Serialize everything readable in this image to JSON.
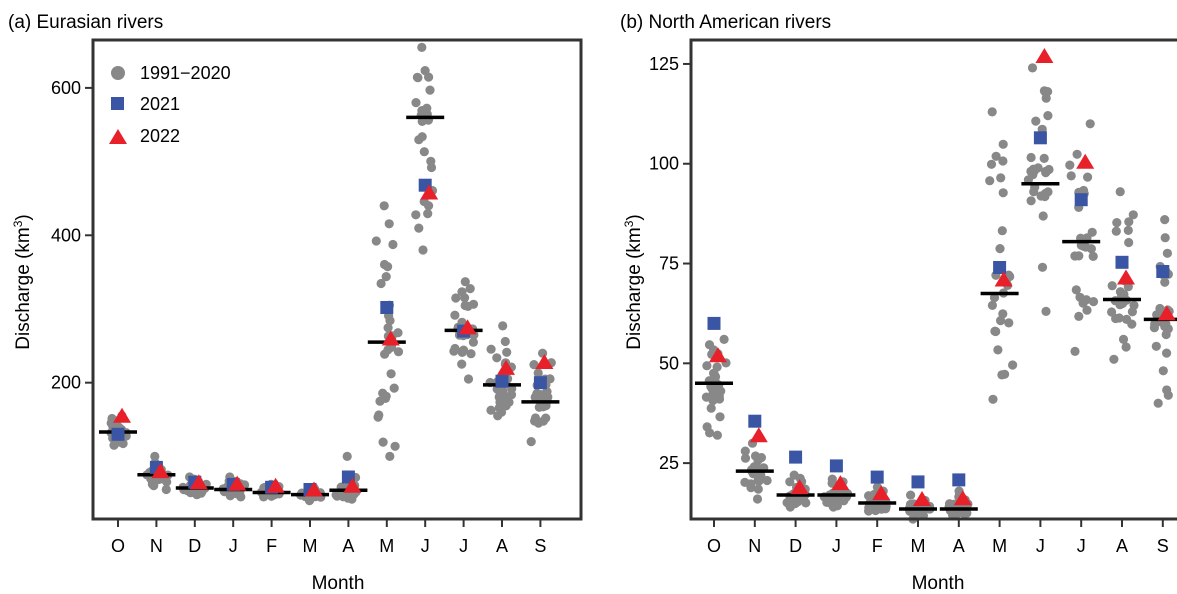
{
  "panels": [
    {
      "title": "(a) Eurasian rivers",
      "xlabel": "Month",
      "ylabel_main": "Discharge (km",
      "ylabel_sup": "3",
      "ylabel_close": ")",
      "legend": [
        "1991−2020",
        "2021",
        "2022"
      ],
      "legend_position": "top-left"
    },
    {
      "title": "(b) North American rivers",
      "xlabel": "Month",
      "ylabel_main": "Discharge (km",
      "ylabel_sup": "3",
      "ylabel_close": ")",
      "legend_position": "none"
    }
  ],
  "colors": {
    "climatology": "#888888",
    "y2021": "#3a55a4",
    "y2022": "#e8202a",
    "median": "#000000"
  },
  "chart_data": [
    {
      "type": "scatter",
      "title": "(a) Eurasian rivers",
      "xlabel": "Month",
      "ylabel": "Discharge (km3)",
      "categories": [
        "O",
        "N",
        "D",
        "J",
        "F",
        "M",
        "A",
        "M",
        "J",
        "J",
        "A",
        "S"
      ],
      "ylim": [
        15,
        665
      ],
      "yticks": [
        200,
        400,
        600
      ],
      "median_1991_2020": [
        133,
        75,
        57,
        55,
        51,
        48,
        54,
        255,
        560,
        271,
        197,
        174
      ],
      "range_1991_2020": [
        [
          115,
          155
        ],
        [
          55,
          100
        ],
        [
          48,
          72
        ],
        [
          45,
          72
        ],
        [
          45,
          62
        ],
        [
          40,
          58
        ],
        [
          42,
          100
        ],
        [
          100,
          440
        ],
        [
          380,
          655
        ],
        [
          205,
          337
        ],
        [
          155,
          277
        ],
        [
          120,
          240
        ]
      ],
      "series": [
        {
          "name": "2021",
          "marker": "square",
          "values": [
            130,
            85,
            65,
            62,
            58,
            55,
            72,
            302,
            468,
            270,
            202,
            200
          ]
        },
        {
          "name": "2022",
          "marker": "triangle",
          "values": [
            155,
            80,
            65,
            63,
            60,
            55,
            60,
            260,
            458,
            275,
            220,
            228
          ]
        }
      ],
      "grid": false,
      "legend": "top-left"
    },
    {
      "type": "scatter",
      "title": "(b) North American rivers",
      "xlabel": "Month",
      "ylabel": "Discharge (km3)",
      "categories": [
        "O",
        "N",
        "D",
        "J",
        "F",
        "M",
        "A",
        "M",
        "J",
        "J",
        "A",
        "S"
      ],
      "ylim": [
        11,
        131
      ],
      "yticks": [
        25,
        50,
        75,
        100,
        125
      ],
      "median_1991_2020": [
        45,
        23,
        17,
        17,
        15,
        13.5,
        13.5,
        67.5,
        95,
        80.5,
        66,
        61
      ],
      "range_1991_2020": [
        [
          32,
          56
        ],
        [
          16,
          30
        ],
        [
          14,
          22
        ],
        [
          14,
          21
        ],
        [
          13,
          19
        ],
        [
          11,
          17
        ],
        [
          12,
          18
        ],
        [
          41,
          113
        ],
        [
          63,
          124
        ],
        [
          53,
          110
        ],
        [
          51,
          93
        ],
        [
          40,
          86
        ]
      ],
      "series": [
        {
          "name": "2021",
          "marker": "square",
          "values": [
            60,
            35.5,
            26.5,
            24.3,
            21.5,
            20.3,
            20.8,
            74,
            106.5,
            91,
            75.3,
            73
          ]
        },
        {
          "name": "2022",
          "marker": "triangle",
          "values": [
            52,
            32,
            19,
            20,
            17.5,
            16,
            16.2,
            71,
            127,
            100.5,
            71.5,
            62.5
          ]
        }
      ],
      "grid": false,
      "legend": "none"
    }
  ]
}
